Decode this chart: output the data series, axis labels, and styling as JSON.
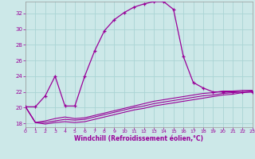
{
  "xlabel": "Windchill (Refroidissement éolien,°C)",
  "bg_color": "#cce8e8",
  "line_color": "#990099",
  "grid_color": "#aad4d4",
  "xlim": [
    0,
    23
  ],
  "ylim": [
    17.5,
    33.5
  ],
  "xticks": [
    0,
    1,
    2,
    3,
    4,
    5,
    6,
    7,
    8,
    9,
    10,
    11,
    12,
    13,
    14,
    15,
    16,
    17,
    18,
    19,
    20,
    21,
    22,
    23
  ],
  "yticks": [
    18,
    20,
    22,
    24,
    26,
    28,
    30,
    32
  ],
  "main_curve_x": [
    0,
    1,
    2,
    3,
    4,
    5,
    6,
    7,
    8,
    9,
    10,
    11,
    12,
    13,
    14,
    15,
    16,
    17,
    18,
    19,
    20,
    21,
    22,
    23
  ],
  "main_curve_y": [
    20.1,
    20.1,
    21.5,
    24.0,
    20.2,
    20.2,
    24.0,
    27.2,
    29.8,
    31.2,
    32.1,
    32.8,
    33.2,
    33.5,
    33.5,
    32.5,
    26.5,
    23.2,
    22.5,
    22.0,
    22.0,
    22.0,
    22.0,
    22.0
  ],
  "line2_y": [
    20.1,
    18.1,
    18.3,
    18.6,
    18.8,
    18.6,
    18.7,
    19.0,
    19.3,
    19.6,
    19.9,
    20.2,
    20.5,
    20.8,
    21.0,
    21.2,
    21.4,
    21.6,
    21.8,
    21.9,
    22.1,
    22.1,
    22.2,
    22.2
  ],
  "line3_y": [
    20.1,
    18.1,
    18.1,
    18.3,
    18.5,
    18.4,
    18.5,
    18.8,
    19.1,
    19.4,
    19.7,
    20.0,
    20.2,
    20.5,
    20.7,
    20.9,
    21.1,
    21.3,
    21.5,
    21.6,
    21.8,
    21.9,
    22.0,
    22.1
  ],
  "line4_y": [
    20.1,
    18.1,
    17.9,
    18.1,
    18.2,
    18.1,
    18.2,
    18.5,
    18.8,
    19.1,
    19.4,
    19.7,
    19.9,
    20.2,
    20.4,
    20.6,
    20.8,
    21.0,
    21.2,
    21.4,
    21.6,
    21.7,
    21.9,
    22.0
  ]
}
